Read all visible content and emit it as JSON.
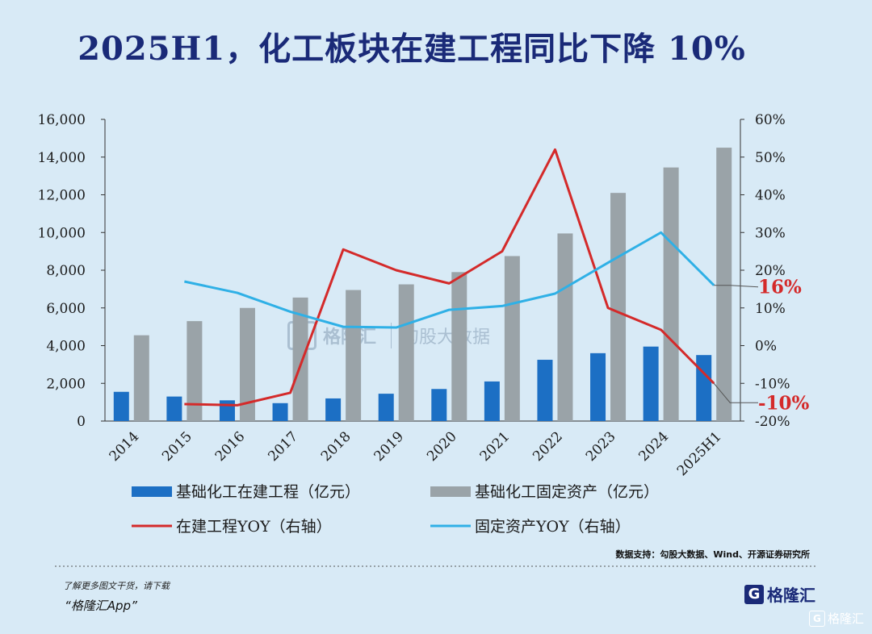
{
  "title": "2025H1，化工板块在建工程同比下降 10%",
  "chart_data": {
    "type": "bar",
    "categories": [
      "2014",
      "2015",
      "2016",
      "2017",
      "2018",
      "2019",
      "2020",
      "2021",
      "2022",
      "2023",
      "2024",
      "2025H1"
    ],
    "y_left": {
      "ticks": [
        "0",
        "2,000",
        "4,000",
        "6,000",
        "8,000",
        "10,000",
        "12,000",
        "14,000",
        "16,000"
      ],
      "min": 0,
      "max": 16000
    },
    "y_right": {
      "ticks": [
        "-20%",
        "-10%",
        "0%",
        "10%",
        "20%",
        "30%",
        "40%",
        "50%",
        "60%"
      ],
      "min": -20,
      "max": 60
    },
    "series": [
      {
        "name": "基础化工在建工程（亿元）",
        "type": "bar",
        "axis": "left",
        "color": "#1c6fc4",
        "values": [
          1550,
          1300,
          1100,
          950,
          1200,
          1450,
          1700,
          2100,
          3250,
          3600,
          3950,
          3500
        ]
      },
      {
        "name": "基础化工固定资产（亿元）",
        "type": "bar",
        "axis": "left",
        "color": "#9aa3a8",
        "values": [
          4550,
          5300,
          6000,
          6550,
          6950,
          7250,
          7900,
          8750,
          9950,
          12100,
          13450,
          14500
        ]
      },
      {
        "name": "在建工程YOY（右轴）",
        "type": "line",
        "axis": "right",
        "color": "#d42a2a",
        "values": [
          null,
          -15.5,
          -15.8,
          -12.5,
          25.5,
          20,
          16.5,
          25,
          52,
          10,
          4.2,
          -10
        ]
      },
      {
        "name": "固定资产YOY（右轴）",
        "type": "line",
        "axis": "right",
        "color": "#2fb0e6",
        "values": [
          null,
          17,
          14,
          9,
          5,
          4.8,
          9.5,
          10.5,
          13.8,
          22,
          30,
          16
        ]
      }
    ],
    "annotations": [
      {
        "text": "16%",
        "series": 3,
        "color": "#d42a2a"
      },
      {
        "text": "-10%",
        "series": 2,
        "color": "#d42a2a"
      }
    ]
  },
  "source": "数据支持：勾股大数据、Wind、开源证券研究所",
  "footer": {
    "line1": "了解更多图文干货，请下载",
    "line2": "“格隆汇App”",
    "logo_mark": "G",
    "logo_text": "格隆汇",
    "corner_text": "格隆汇"
  },
  "watermark": {
    "mark": "G",
    "brand": "格隆汇",
    "site": "勾股大数据"
  }
}
